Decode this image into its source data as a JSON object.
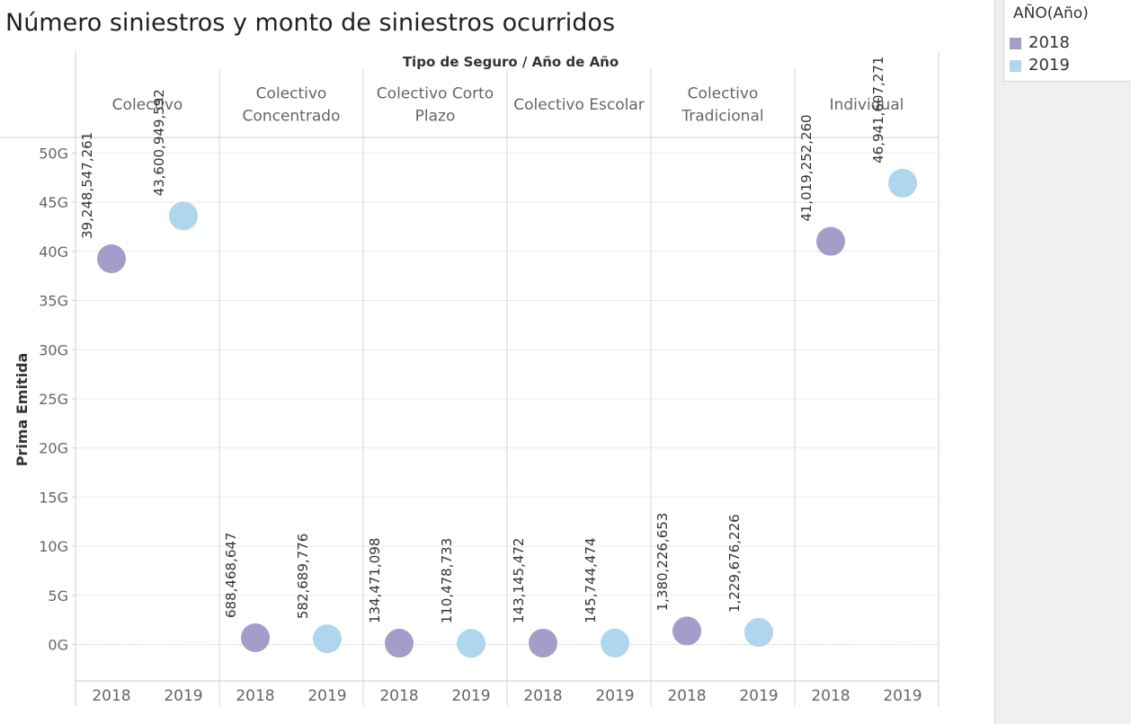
{
  "title": "Número siniestros y monto de siniestros ocurridos",
  "legend": {
    "title": "AÑO(Año)",
    "items": [
      {
        "label": "2018",
        "color": "#a59cca"
      },
      {
        "label": "2019",
        "color": "#afd6ec"
      }
    ]
  },
  "chart_data": {
    "type": "scatter",
    "header_label": "Tipo de Seguro  /  Año de Año",
    "ylabel": "Prima Emitida",
    "ylim": [
      -3.7,
      51.5
    ],
    "yticks": [
      0,
      5,
      10,
      15,
      20,
      25,
      30,
      35,
      40,
      45,
      50
    ],
    "ytick_labels": [
      "0G",
      "5G",
      "10G",
      "15G",
      "20G",
      "25G",
      "30G",
      "35G",
      "40G",
      "45G",
      "50G"
    ],
    "grid": true,
    "legend_position": "top-right",
    "x_labels": [
      "2018",
      "2019"
    ],
    "categories": [
      {
        "name": "Colectivo",
        "points": [
          {
            "year": "2018",
            "value": 39248547261,
            "label": "39,248,547,261"
          },
          {
            "year": "2019",
            "value": 43600949592,
            "label": "43,600,949,592"
          }
        ]
      },
      {
        "name": "Colectivo Concentrado",
        "points": [
          {
            "year": "2018",
            "value": 688468647,
            "label": "688,468,647"
          },
          {
            "year": "2019",
            "value": 582689776,
            "label": "582,689,776"
          }
        ]
      },
      {
        "name": "Colectivo Corto Plazo",
        "points": [
          {
            "year": "2018",
            "value": 134471098,
            "label": "134,471,098"
          },
          {
            "year": "2019",
            "value": 110478733,
            "label": "110,478,733"
          }
        ]
      },
      {
        "name": "Colectivo Escolar",
        "points": [
          {
            "year": "2018",
            "value": 143145472,
            "label": "143,145,472"
          },
          {
            "year": "2019",
            "value": 145744474,
            "label": "145,744,474"
          }
        ]
      },
      {
        "name": "Colectivo Tradicional",
        "points": [
          {
            "year": "2018",
            "value": 1380226653,
            "label": "1,380,226,653"
          },
          {
            "year": "2019",
            "value": 1229676226,
            "label": "1,229,676,226"
          }
        ]
      },
      {
        "name": "Individual",
        "points": [
          {
            "year": "2018",
            "value": 41019252260,
            "label": "41,019,252,260"
          },
          {
            "year": "2019",
            "value": 46941607271,
            "label": "46,941,607,271"
          }
        ]
      }
    ]
  }
}
